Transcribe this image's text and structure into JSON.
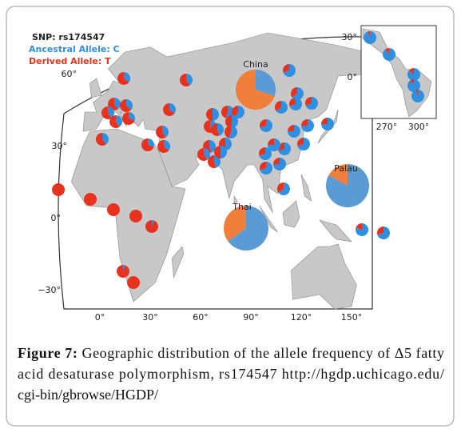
{
  "figure": {
    "legend": {
      "snp": "SNP: rs174547",
      "ancestral": "Ancestral Allele: C",
      "derived": "Derived Allele: T"
    },
    "lat_labels": [
      "60°",
      "30°",
      "0°",
      "−30°"
    ],
    "lon_labels": [
      "0°",
      "30°",
      "60°",
      "90°",
      "120°",
      "150°"
    ],
    "highlighted": [
      {
        "name": "China",
        "derived": 70
      },
      {
        "name": "Thai",
        "derived": 35
      },
      {
        "name": "Palau",
        "derived": 17
      }
    ],
    "populations": [
      100,
      100,
      100,
      100,
      95,
      95,
      100,
      65,
      60,
      65,
      60,
      70,
      60,
      65,
      60,
      70,
      65,
      60,
      60,
      55,
      50,
      45,
      40,
      50,
      55,
      45,
      50,
      55,
      60,
      55,
      50,
      30,
      35,
      30,
      30,
      35,
      30,
      25,
      25,
      30,
      30,
      25,
      30,
      25,
      30,
      35,
      25,
      20,
      30
    ],
    "inset": {
      "lat_labels": [
        "30°",
        "0°"
      ],
      "lon_labels": [
        "270°",
        "300°"
      ],
      "populations": [
        5,
        10,
        15,
        10,
        5
      ]
    }
  },
  "caption": {
    "label": "Figure 7:",
    "lines": [
      " Geographic distribution of the allele frequency of Δ5 fatty",
      "acid desaturase polymorphism, rs174547 http://hgdp.uchicago.edu/",
      "cgi-bin/gbrowse/HGDP/"
    ]
  }
}
